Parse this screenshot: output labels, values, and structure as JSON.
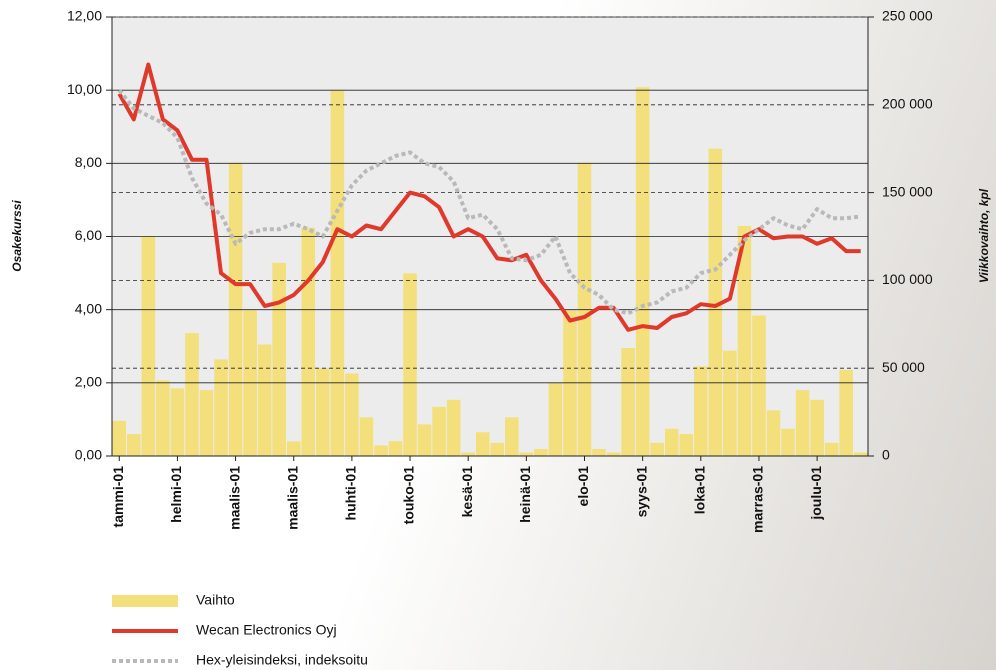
{
  "chart_data": {
    "type": "bar_line",
    "y_label": "Osakekurssi",
    "y2_label": "Viikkovaihto, kpl",
    "categories": [
      "tammi-01",
      null,
      null,
      null,
      "helmi-01",
      null,
      null,
      null,
      "maalis-01",
      null,
      null,
      null,
      "maalis-01",
      null,
      null,
      null,
      "huhti-01",
      null,
      null,
      null,
      "touko-01",
      null,
      null,
      null,
      "kesä-01",
      null,
      null,
      null,
      "heinä-01",
      null,
      null,
      null,
      "elo-01",
      null,
      null,
      null,
      "syys-01",
      null,
      null,
      null,
      "loka-01",
      null,
      null,
      null,
      "marras-01",
      null,
      null,
      null,
      "joulu-01",
      null,
      null,
      null
    ],
    "series": [
      {
        "name": "Vaihto",
        "type": "bar",
        "axis": "y2",
        "color": "#f3df7c",
        "values": [
          20000,
          12500,
          125000,
          43000,
          38500,
          70000,
          37500,
          55000,
          167000,
          83000,
          63500,
          110000,
          8300,
          130000,
          50000,
          208000,
          47000,
          22000,
          6000,
          8500,
          104000,
          18000,
          28000,
          32000,
          2000,
          13500,
          7500,
          22000,
          2000,
          4000,
          41500,
          83000,
          167000,
          4000,
          2000,
          61500,
          210000,
          7500,
          15500,
          12500,
          51000,
          175000,
          60000,
          131000,
          80000,
          26000,
          15500,
          37500,
          32000,
          7500,
          49000,
          2000
        ]
      },
      {
        "name": "Wecan Electronics Oyj",
        "type": "line",
        "color": "#e0392b",
        "dash": "solid",
        "values": [
          9.9,
          9.2,
          10.7,
          9.2,
          8.9,
          8.1,
          8.1,
          5.0,
          4.7,
          4.7,
          4.1,
          4.2,
          4.4,
          4.8,
          5.3,
          6.2,
          6.0,
          6.3,
          6.2,
          6.7,
          7.2,
          7.1,
          6.8,
          6.0,
          6.2,
          6.0,
          5.4,
          5.35,
          5.5,
          4.8,
          4.3,
          3.7,
          3.8,
          4.05,
          4.05,
          3.45,
          3.55,
          3.5,
          3.8,
          3.9,
          4.15,
          4.1,
          4.3,
          6.0,
          6.2,
          5.95,
          6.0,
          6.0,
          5.8,
          5.95,
          5.6,
          5.6
        ]
      },
      {
        "name": "Hex-yleisindeksi, indeksoitu",
        "type": "line",
        "color": "#b9b9b9",
        "dash": "dotted",
        "values": [
          10.0,
          9.5,
          9.3,
          9.1,
          8.7,
          7.6,
          6.9,
          6.6,
          5.8,
          6.1,
          6.2,
          6.2,
          6.35,
          6.2,
          6.0,
          6.7,
          7.4,
          7.8,
          8.0,
          8.2,
          8.3,
          8.0,
          7.9,
          7.5,
          6.5,
          6.6,
          6.2,
          5.4,
          5.35,
          5.5,
          6.0,
          5.0,
          4.6,
          4.4,
          4.0,
          3.9,
          4.1,
          4.2,
          4.5,
          4.6,
          5.0,
          5.1,
          5.5,
          5.9,
          6.2,
          6.5,
          6.3,
          6.2,
          6.75,
          6.5,
          6.5,
          6.55
        ]
      }
    ],
    "ylim": [
      0,
      12
    ],
    "yticks": [
      {
        "value": 0,
        "label": "0,00"
      },
      {
        "value": 2,
        "label": "2,00"
      },
      {
        "value": 4,
        "label": "4,00"
      },
      {
        "value": 6,
        "label": "6,00"
      },
      {
        "value": 8,
        "label": "8,00"
      },
      {
        "value": 10,
        "label": "10,00"
      },
      {
        "value": 12,
        "label": "12,00"
      }
    ],
    "y2lim": [
      0,
      250000
    ],
    "y2ticks": [
      0,
      {
        "value": 50000,
        "label": "50 000"
      },
      {
        "value": 100000,
        "label": "100 000"
      },
      {
        "value": 150000,
        "label": "150 000"
      },
      {
        "value": 200000,
        "label": "200 000"
      },
      {
        "value": 250000,
        "label": "250 000"
      }
    ],
    "grid": true
  }
}
